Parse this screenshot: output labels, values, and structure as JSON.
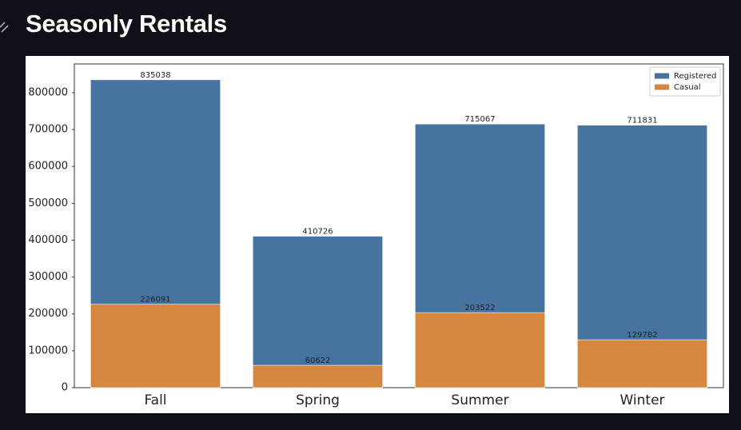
{
  "header": {
    "title": "Seasonly Rentals"
  },
  "chart_data": {
    "type": "bar",
    "barmode": "overlay",
    "categories": [
      "Fall",
      "Spring",
      "Summer",
      "Winter"
    ],
    "series": [
      {
        "name": "Registered",
        "color": "#4773a0",
        "values": [
          835038,
          410726,
          715067,
          711831
        ]
      },
      {
        "name": "Casual",
        "color": "#d6873f",
        "values": [
          226091,
          60622,
          203522,
          129782
        ]
      }
    ],
    "ylim": [
      0,
      878000
    ],
    "yticks": [
      0,
      100000,
      200000,
      300000,
      400000,
      500000,
      600000,
      700000,
      800000
    ],
    "legend": "upper right",
    "grid": false
  }
}
